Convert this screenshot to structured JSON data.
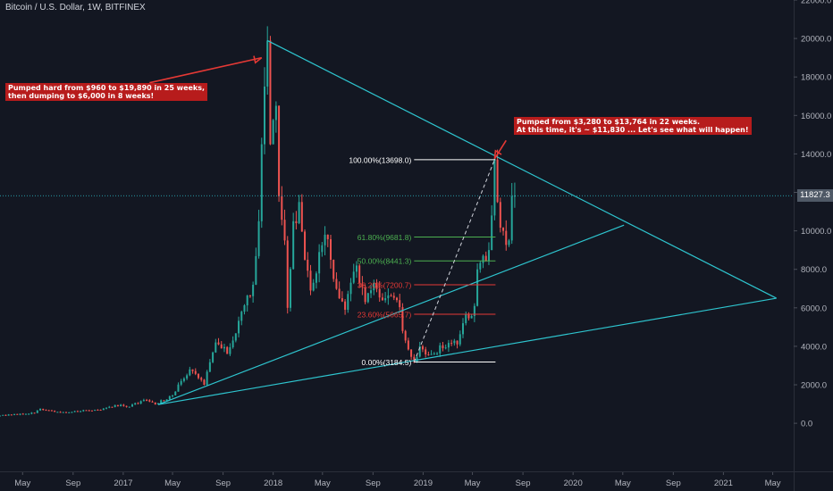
{
  "header": {
    "symbol_title": "Bitcoin / U.S. Dollar, 1W, BITFINEX"
  },
  "colors": {
    "background": "#131722",
    "up": "#26a69a",
    "down": "#ef5350",
    "trendline": "#2ec5cf",
    "annotation_bg": "#b71c1c",
    "arrow": "#e53935",
    "fib_green": "#4caf50",
    "fib_red": "#e53935",
    "fib_white": "#ffffff",
    "axis_text": "#b2b5be"
  },
  "annotations": {
    "note_left": {
      "lines": [
        "Pumped hard from $960 to $19,890 in 25 weeks,",
        "then dumping to $6,000 in 8 weeks!"
      ]
    },
    "note_right": {
      "lines": [
        "Pumped from $3,280 to $13,764 in 22 weeks.",
        "At this time, it's ~ $11,830 ... Let's see what will happen!"
      ]
    }
  },
  "current_price_label": "11827.3",
  "chart_data": {
    "type": "candlestick",
    "title": "Bitcoin / U.S. Dollar, 1W, BITFINEX",
    "y_axis": {
      "side": "right",
      "range": [
        -2500,
        22000
      ],
      "ticks": [
        0,
        2000,
        4000,
        6000,
        8000,
        10000,
        12000,
        14000,
        16000,
        18000,
        20000,
        22000
      ],
      "tick_labels": [
        "0.0",
        "2000.0",
        "4000.0",
        "6000.0",
        "8000.0",
        "10000.0",
        "12000.0",
        "14000.0",
        "16000.0",
        "18000.0",
        "20000.0",
        "22000.0"
      ]
    },
    "x_axis": {
      "range": [
        "2016-03-07",
        "2021-06-21"
      ],
      "ticks": [
        {
          "date": "2016-05-01",
          "label": "May"
        },
        {
          "date": "2016-09-01",
          "label": "Sep"
        },
        {
          "date": "2017-01-01",
          "label": "2017"
        },
        {
          "date": "2017-05-01",
          "label": "May"
        },
        {
          "date": "2017-09-01",
          "label": "Sep"
        },
        {
          "date": "2018-01-01",
          "label": "2018"
        },
        {
          "date": "2018-05-01",
          "label": "May"
        },
        {
          "date": "2018-09-01",
          "label": "Sep"
        },
        {
          "date": "2019-01-01",
          "label": "2019"
        },
        {
          "date": "2019-05-01",
          "label": "May"
        },
        {
          "date": "2019-09-01",
          "label": "Sep"
        },
        {
          "date": "2020-01-01",
          "label": "2020"
        },
        {
          "date": "2020-05-01",
          "label": "May"
        },
        {
          "date": "2020-09-01",
          "label": "Sep"
        },
        {
          "date": "2021-01-01",
          "label": "2021"
        },
        {
          "date": "2021-05-01",
          "label": "May"
        }
      ]
    },
    "grid": false,
    "last_price": 11827.3,
    "price_path": [
      [
        "2016-03-07",
        400
      ],
      [
        "2016-05-30",
        530
      ],
      [
        "2016-06-13",
        750
      ],
      [
        "2016-08-01",
        560
      ],
      [
        "2016-10-31",
        700
      ],
      [
        "2016-12-26",
        960
      ],
      [
        "2017-01-09",
        850
      ],
      [
        "2017-02-27",
        1200
      ],
      [
        "2017-03-20",
        980
      ],
      [
        "2017-05-01",
        1450
      ],
      [
        "2017-06-12",
        2800
      ],
      [
        "2017-07-17",
        2000
      ],
      [
        "2017-08-14",
        4200
      ],
      [
        "2017-09-11",
        3600
      ],
      [
        "2017-09-25",
        4300
      ],
      [
        "2017-10-16",
        5800
      ],
      [
        "2017-11-13",
        7200
      ],
      [
        "2017-11-27",
        10500
      ],
      [
        "2017-12-11",
        17500
      ],
      [
        "2017-12-18",
        19890
      ],
      [
        "2017-12-25",
        14500
      ],
      [
        "2018-01-08",
        16500
      ],
      [
        "2018-01-15",
        11800
      ],
      [
        "2018-01-29",
        9500
      ],
      [
        "2018-02-05",
        6000
      ],
      [
        "2018-02-19",
        10500
      ],
      [
        "2018-03-05",
        11500
      ],
      [
        "2018-03-19",
        8500
      ],
      [
        "2018-04-02",
        6900
      ],
      [
        "2018-04-23",
        8900
      ],
      [
        "2018-05-07",
        9800
      ],
      [
        "2018-05-28",
        7500
      ],
      [
        "2018-06-11",
        6500
      ],
      [
        "2018-06-25",
        5900
      ],
      [
        "2018-07-23",
        8200
      ],
      [
        "2018-08-13",
        6300
      ],
      [
        "2018-09-03",
        7300
      ],
      [
        "2018-10-01",
        6500
      ],
      [
        "2018-10-29",
        6400
      ],
      [
        "2018-11-19",
        4300
      ],
      [
        "2018-12-10",
        3184.5
      ],
      [
        "2018-12-24",
        4000
      ],
      [
        "2019-01-21",
        3600
      ],
      [
        "2019-02-18",
        3900
      ],
      [
        "2019-03-25",
        4100
      ],
      [
        "2019-04-08",
        5200
      ],
      [
        "2019-05-06",
        6100
      ],
      [
        "2019-05-13",
        8000
      ],
      [
        "2019-05-27",
        8700
      ],
      [
        "2019-06-10",
        9000
      ],
      [
        "2019-06-17",
        10800
      ],
      [
        "2019-06-24",
        13698.0
      ],
      [
        "2019-07-01",
        11500
      ],
      [
        "2019-07-15",
        10000
      ],
      [
        "2019-07-29",
        9500
      ],
      [
        "2019-08-05",
        11800
      ],
      [
        "2019-08-12",
        11827.3
      ]
    ],
    "fibonacci": {
      "from": {
        "date": "2018-12-10",
        "price": 3184.5
      },
      "to": {
        "date": "2019-06-24",
        "price": 13698.0
      },
      "levels": [
        {
          "label": "100.00%(13698.0)",
          "price": 13698.0,
          "color": "#ffffff"
        },
        {
          "label": "61.80%(9681.8)",
          "price": 9681.8,
          "color": "#4caf50"
        },
        {
          "label": "50.00%(8441.3)",
          "price": 8441.3,
          "color": "#4caf50"
        },
        {
          "label": "38.20%(7200.7)",
          "price": 7200.7,
          "color": "#e53935"
        },
        {
          "label": "23.60%(5665.7)",
          "price": 5665.7,
          "color": "#e53935"
        },
        {
          "label": "0.00%(3184.5)",
          "price": 3184.5,
          "color": "#ffffff"
        }
      ]
    },
    "trendlines": [
      {
        "from": {
          "date": "2017-12-18",
          "price": 19890
        },
        "to": {
          "date": "2021-05-10",
          "price": 6500
        }
      },
      {
        "from": {
          "date": "2017-03-27",
          "price": 970
        },
        "to": {
          "date": "2021-05-10",
          "price": 6500
        }
      },
      {
        "from": {
          "date": "2017-03-27",
          "price": 970
        },
        "to": {
          "date": "2020-05-04",
          "price": 10300
        }
      }
    ],
    "dashed_lines": [
      {
        "from": {
          "date": "2018-12-10",
          "price": 3184.5
        },
        "to": {
          "date": "2019-06-24",
          "price": 13698.0
        }
      }
    ],
    "arrows": [
      {
        "from": {
          "date": "2017-03-06",
          "price": 17700
        },
        "to": {
          "date": "2017-12-04",
          "price": 19000
        }
      },
      {
        "from": {
          "date": "2019-07-22",
          "price": 14700
        },
        "to": {
          "date": "2019-06-24",
          "price": 13750
        }
      }
    ]
  }
}
